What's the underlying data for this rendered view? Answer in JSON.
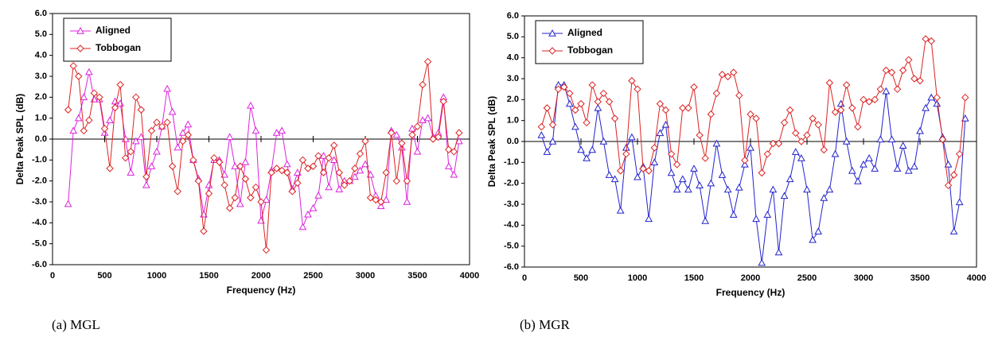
{
  "chart_data": [
    {
      "type": "line",
      "caption": "(a) MGL",
      "x_label": "Frequency (Hz)",
      "y_label": "Delta Peak SPL (dB)",
      "legend": "upper left",
      "xlim": [
        0,
        4000
      ],
      "ylim": [
        -6,
        6
      ],
      "xticks": [
        0,
        500,
        1000,
        1500,
        2000,
        2500,
        3000,
        3500,
        4000
      ],
      "yticks": [
        {
          "value": -6,
          "label": "-6.0"
        },
        {
          "value": -5,
          "label": "-5.0"
        },
        {
          "value": -4,
          "label": "-4.0"
        },
        {
          "value": -3,
          "label": "-3.0"
        },
        {
          "value": -2,
          "label": "-2.0"
        },
        {
          "value": -1,
          "label": "-1.0"
        },
        {
          "value": 0,
          "label": "0.0"
        },
        {
          "value": 1,
          "label": "1.0"
        },
        {
          "value": 2,
          "label": "2.0"
        },
        {
          "value": 3,
          "label": "3.0"
        },
        {
          "value": 4,
          "label": "4.0"
        },
        {
          "value": 5,
          "label": "5.0"
        },
        {
          "value": 6,
          "label": "6.0"
        }
      ],
      "x": [
        150,
        200,
        250,
        300,
        350,
        400,
        450,
        500,
        550,
        600,
        650,
        700,
        750,
        800,
        850,
        900,
        950,
        1000,
        1050,
        1100,
        1150,
        1200,
        1250,
        1300,
        1350,
        1400,
        1450,
        1500,
        1550,
        1600,
        1650,
        1700,
        1750,
        1800,
        1850,
        1900,
        1950,
        2000,
        2050,
        2100,
        2150,
        2200,
        2250,
        2300,
        2350,
        2400,
        2450,
        2500,
        2550,
        2600,
        2650,
        2700,
        2750,
        2800,
        2850,
        2900,
        2950,
        3000,
        3050,
        3100,
        3150,
        3200,
        3250,
        3300,
        3350,
        3400,
        3450,
        3500,
        3550,
        3600,
        3650,
        3700,
        3750,
        3800,
        3850,
        3900
      ],
      "series": [
        {
          "name": "Aligned",
          "color": "#dd22dd",
          "marker": "triangle",
          "values": [
            -3.1,
            0.4,
            1.0,
            2.0,
            3.2,
            1.9,
            1.9,
            0.3,
            0.9,
            1.8,
            1.7,
            0.0,
            -1.6,
            -0.1,
            0.1,
            -2.2,
            -1.3,
            -0.6,
            0.6,
            2.4,
            1.3,
            -0.4,
            0.3,
            0.7,
            -1.0,
            -1.9,
            -3.6,
            -2.2,
            -1.0,
            -1.0,
            -1.7,
            0.1,
            -1.3,
            -3.1,
            -1.1,
            1.6,
            0.4,
            -3.9,
            -2.9,
            -1.5,
            0.3,
            0.4,
            -1.2,
            -2.4,
            -1.6,
            -4.2,
            -3.6,
            -3.3,
            -2.7,
            -0.8,
            -2.3,
            -1.0,
            -2.4,
            -2.0,
            -2.0,
            -1.8,
            -1.5,
            -1.2,
            -1.7,
            -2.7,
            -3.2,
            -2.9,
            0.4,
            0.2,
            -0.4,
            -3.0,
            0.5,
            -0.6,
            0.9,
            1.0,
            0.1,
            0.3,
            2.0,
            -1.3,
            -1.7,
            -0.1
          ]
        },
        {
          "name": "Tobbogan",
          "color": "#dd2222",
          "marker": "diamond",
          "values": [
            1.4,
            3.5,
            3.0,
            0.4,
            0.9,
            2.2,
            2.0,
            0.5,
            -1.4,
            1.5,
            2.6,
            -0.9,
            -0.6,
            2.0,
            1.4,
            -1.8,
            0.4,
            0.8,
            0.6,
            0.8,
            -1.3,
            -2.5,
            -0.1,
            0.2,
            -1.0,
            -2.0,
            -4.4,
            -2.6,
            -0.9,
            -1.1,
            -2.2,
            -3.3,
            -2.8,
            -1.3,
            -1.9,
            -2.8,
            -2.3,
            -3.0,
            -5.3,
            -1.6,
            -1.4,
            -1.5,
            -1.6,
            -2.5,
            -2.1,
            -1.0,
            -1.4,
            -1.3,
            -0.8,
            -1.6,
            -0.9,
            -0.3,
            -1.6,
            -2.2,
            -2.0,
            -1.4,
            -0.7,
            -0.1,
            -2.8,
            -2.9,
            -3.0,
            -1.6,
            0.3,
            -2.0,
            -0.2,
            -2.0,
            0.2,
            0.6,
            2.6,
            3.7,
            0.0,
            0.1,
            1.8,
            -0.5,
            -0.6,
            0.3
          ]
        }
      ]
    },
    {
      "type": "line",
      "caption": "(b) MGR",
      "x_label": "Frequency (Hz)",
      "y_label": "Delta Peak SPL (dB)",
      "legend": "upper left",
      "xlim": [
        0,
        4000
      ],
      "ylim": [
        -6,
        6
      ],
      "xticks": [
        0,
        500,
        1000,
        1500,
        2000,
        2500,
        3000,
        3500,
        4000
      ],
      "yticks": [
        {
          "value": -6,
          "label": "-6.0"
        },
        {
          "value": -5,
          "label": "-5.0"
        },
        {
          "value": -4,
          "label": "-4.0"
        },
        {
          "value": -3,
          "label": "-3.0"
        },
        {
          "value": -2,
          "label": "-2.0"
        },
        {
          "value": -1,
          "label": "-1.0"
        },
        {
          "value": 0,
          "label": "0.0"
        },
        {
          "value": 1,
          "label": "1.0"
        },
        {
          "value": 2,
          "label": "2.0"
        },
        {
          "value": 3,
          "label": "3.0"
        },
        {
          "value": 4,
          "label": "4.0"
        },
        {
          "value": 5,
          "label": "5.0"
        },
        {
          "value": 6,
          "label": "6.0"
        }
      ],
      "x": [
        150,
        200,
        250,
        300,
        350,
        400,
        450,
        500,
        550,
        600,
        650,
        700,
        750,
        800,
        850,
        900,
        950,
        1000,
        1050,
        1100,
        1150,
        1200,
        1250,
        1300,
        1350,
        1400,
        1450,
        1500,
        1550,
        1600,
        1650,
        1700,
        1750,
        1800,
        1850,
        1900,
        1950,
        2000,
        2050,
        2100,
        2150,
        2200,
        2250,
        2300,
        2350,
        2400,
        2450,
        2500,
        2550,
        2600,
        2650,
        2700,
        2750,
        2800,
        2850,
        2900,
        2950,
        3000,
        3050,
        3100,
        3150,
        3200,
        3250,
        3300,
        3350,
        3400,
        3450,
        3500,
        3550,
        3600,
        3650,
        3700,
        3750,
        3800,
        3850,
        3900
      ],
      "series": [
        {
          "name": "Aligned",
          "color": "#2222cc",
          "marker": "triangle",
          "values": [
            0.3,
            -0.5,
            0.0,
            2.7,
            2.7,
            1.8,
            0.7,
            -0.4,
            -0.8,
            -0.4,
            1.6,
            0.0,
            -1.6,
            -1.8,
            -3.3,
            -0.3,
            0.2,
            -1.7,
            -1.2,
            -3.7,
            -1.0,
            0.4,
            0.8,
            -1.5,
            -2.3,
            -1.8,
            -2.3,
            -1.3,
            -2.1,
            -3.8,
            -2.0,
            -0.1,
            -1.6,
            -2.3,
            -3.5,
            -2.2,
            -1.1,
            -0.3,
            -3.7,
            -5.8,
            -3.5,
            -2.3,
            -5.3,
            -2.6,
            -1.8,
            -0.5,
            -0.8,
            -2.3,
            -4.7,
            -4.3,
            -2.7,
            -2.3,
            -0.6,
            1.8,
            0.0,
            -1.4,
            -1.9,
            -1.1,
            -0.8,
            -1.3,
            0.1,
            2.4,
            0.1,
            -1.3,
            -0.2,
            -1.4,
            -1.2,
            0.5,
            1.6,
            2.1,
            1.8,
            0.2,
            -1.1,
            -4.3,
            -2.9,
            1.1
          ]
        },
        {
          "name": "Tobbogan",
          "color": "#dd2222",
          "marker": "diamond",
          "values": [
            0.7,
            1.6,
            0.8,
            2.5,
            2.6,
            2.3,
            1.5,
            1.8,
            0.9,
            2.7,
            1.9,
            2.3,
            1.9,
            1.1,
            -1.4,
            -0.6,
            2.9,
            2.5,
            -1.3,
            -1.4,
            -0.3,
            1.8,
            1.5,
            -0.6,
            -1.1,
            1.6,
            1.6,
            2.6,
            0.3,
            -0.8,
            1.3,
            2.3,
            3.2,
            3.1,
            3.3,
            2.2,
            -0.9,
            1.3,
            1.1,
            -1.5,
            -0.6,
            -0.1,
            -0.1,
            0.9,
            1.5,
            0.4,
            0.0,
            0.3,
            1.1,
            0.8,
            -0.4,
            2.8,
            1.4,
            1.5,
            2.7,
            1.6,
            0.7,
            2.0,
            1.9,
            2.0,
            2.5,
            3.4,
            3.3,
            2.5,
            3.4,
            3.9,
            3.0,
            2.9,
            4.9,
            4.8,
            2.1,
            0.1,
            -2.1,
            -1.6,
            -0.6,
            2.1
          ]
        }
      ]
    }
  ]
}
